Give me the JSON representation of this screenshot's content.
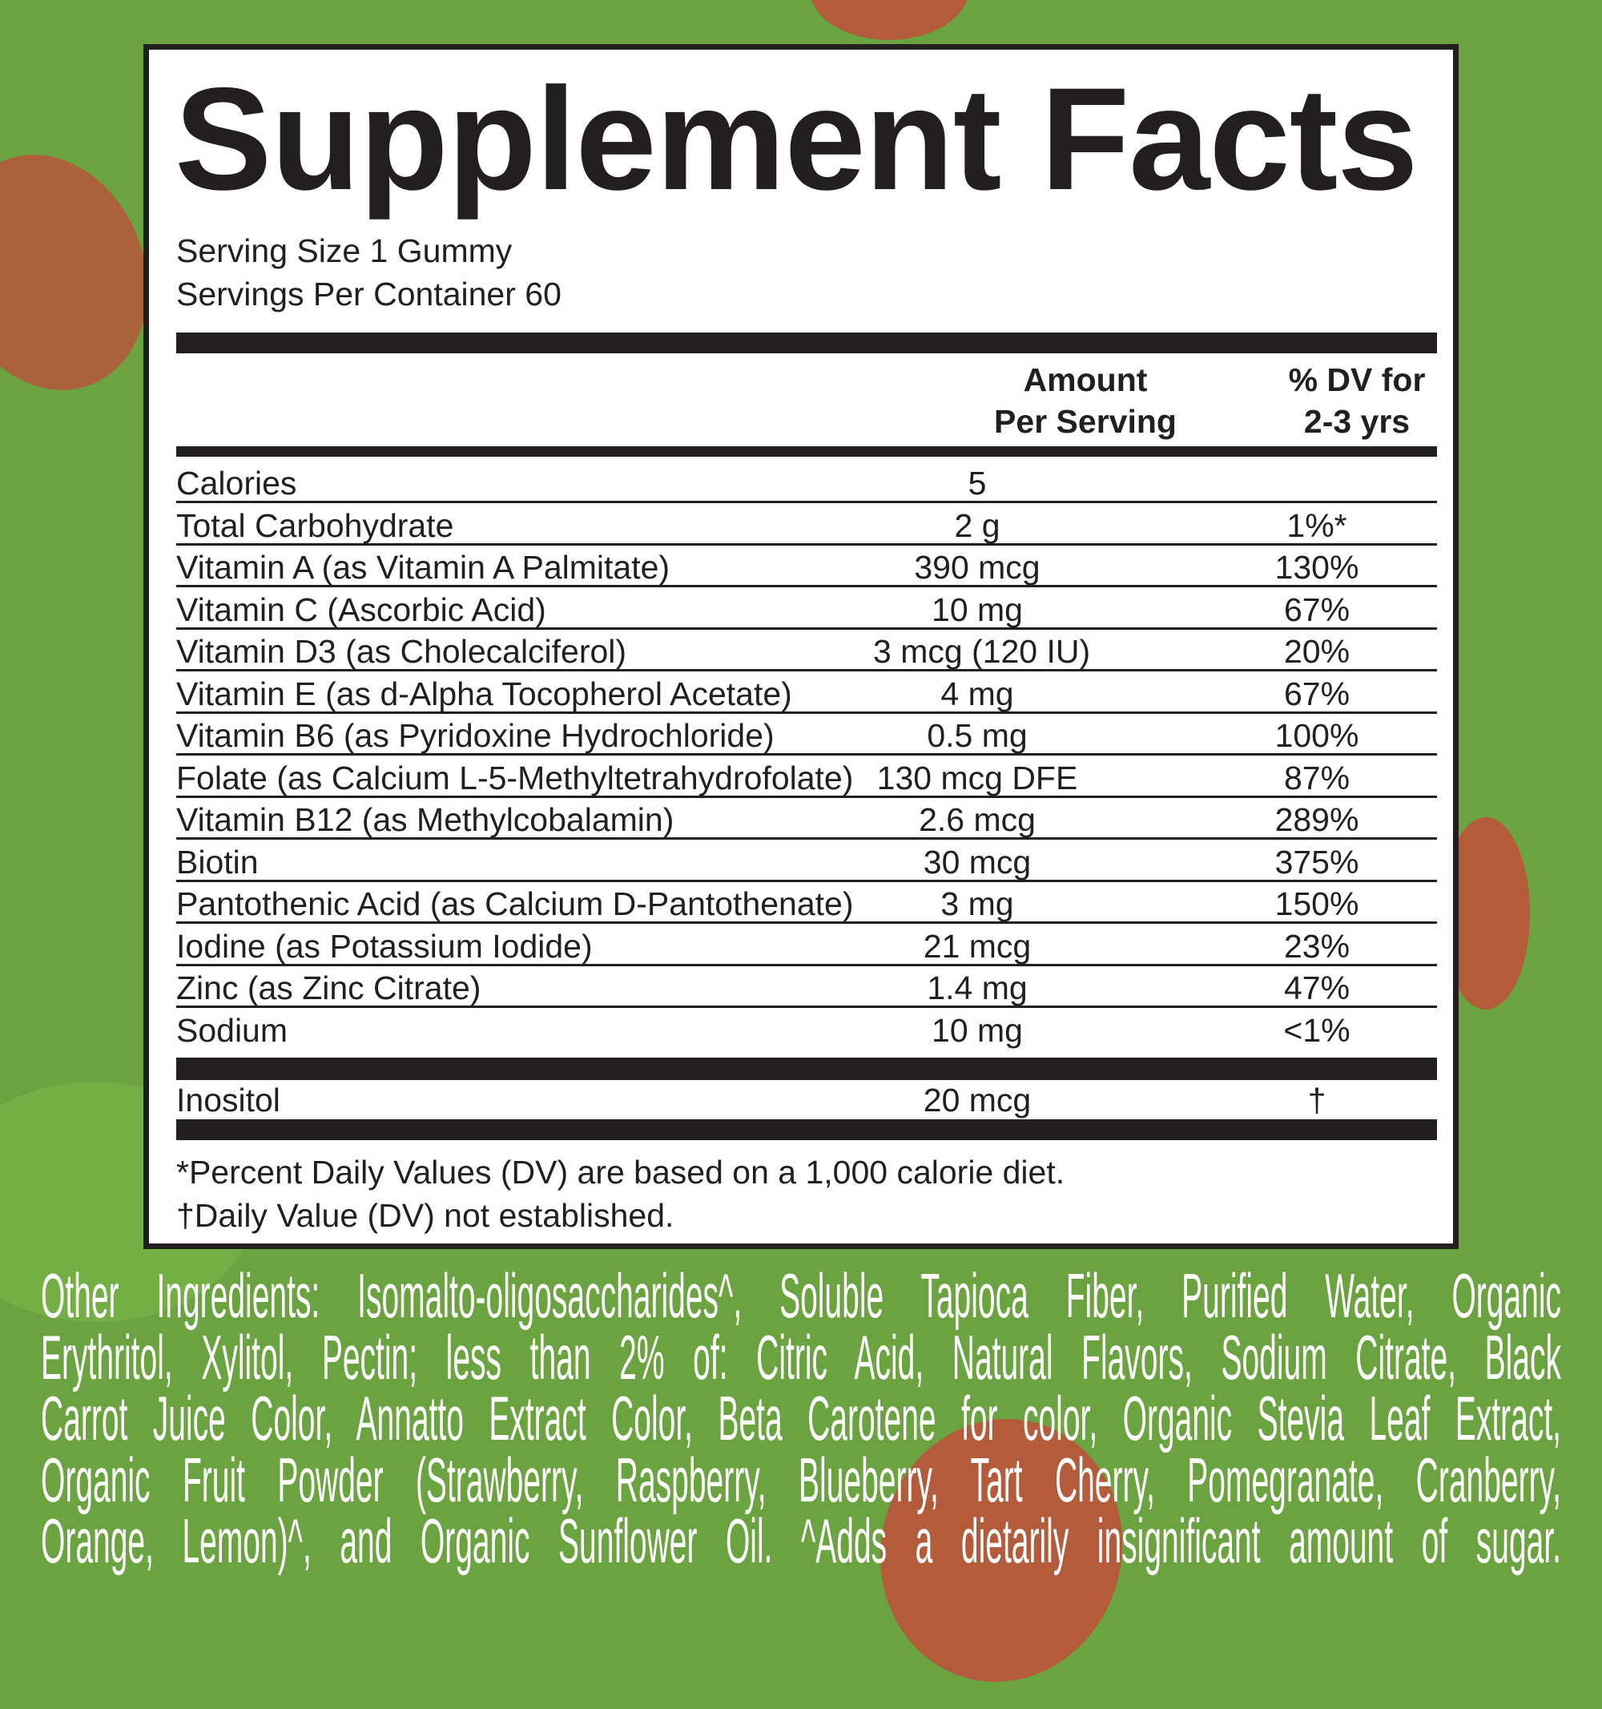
{
  "colors": {
    "background": "#6aa33f",
    "panel": "#ffffff",
    "ink": "#231f20",
    "ingredients_text": "#ffffff",
    "strawberry": "#b35b3b"
  },
  "title": "Supplement Facts",
  "serving_size": "Serving Size 1 Gummy",
  "servings_per_container": "Servings Per Container 60",
  "header": {
    "amount_line1": "Amount",
    "amount_line2": "Per Serving",
    "dv_line1": "% DV for",
    "dv_line2": "2-3 yrs"
  },
  "rows": [
    {
      "name": "Calories",
      "amount": "5",
      "dv": ""
    },
    {
      "name": "Total Carbohydrate",
      "amount": "2 g",
      "dv": "1%*"
    },
    {
      "name": "Vitamin A (as Vitamin A Palmitate)",
      "amount": "390 mcg",
      "dv": "130%"
    },
    {
      "name": "Vitamin C (Ascorbic Acid)",
      "amount": "10 mg",
      "dv": "67%"
    },
    {
      "name": "Vitamin D3 (as Cholecalciferol)",
      "amount": "3 mcg (120 IU)",
      "dv": "20%"
    },
    {
      "name": "Vitamin E (as d-Alpha Tocopherol Acetate)",
      "amount": "4 mg",
      "dv": "67%"
    },
    {
      "name": "Vitamin B6 (as Pyridoxine Hydrochloride)",
      "amount": "0.5 mg",
      "dv": "100%"
    },
    {
      "name": "Folate (as Calcium L-5-Methyltetrahydrofolate)",
      "amount": "130 mcg DFE",
      "dv": "87%"
    },
    {
      "name": "Vitamin B12 (as Methylcobalamin)",
      "amount": "2.6 mcg",
      "dv": "289%"
    },
    {
      "name": "Biotin",
      "amount": "30 mcg",
      "dv": "375%"
    },
    {
      "name": "Pantothenic Acid (as Calcium D-Pantothenate)",
      "amount": "3 mg",
      "dv": "150%"
    },
    {
      "name": "Iodine (as Potassium Iodide)",
      "amount": "21 mcg",
      "dv": "23%"
    },
    {
      "name": "Zinc (as Zinc Citrate)",
      "amount": "1.4 mg",
      "dv": "47%"
    },
    {
      "name": "Sodium",
      "amount": "10 mg",
      "dv": "<1%"
    }
  ],
  "other_row": {
    "name": "Inositol",
    "amount": "20 mcg",
    "dv": "†"
  },
  "footnotes": [
    "*Percent Daily Values (DV) are based on a 1,000 calorie diet.",
    "†Daily Value (DV) not established."
  ],
  "other_ingredients_lines": [
    "Other Ingredients: Isomalto-oligosaccharides^, Soluble Tapioca Fiber, Purified Water, Organic",
    "Erythritol, Xylitol, Pectin; less than 2% of: Citric Acid, Natural Flavors, Sodium Citrate, Black",
    "Carrot Juice Color, Annatto Extract Color, Beta Carotene for color, Organic Stevia Leaf Extract,",
    "Organic Fruit Powder (Strawberry, Raspberry, Blueberry, Tart Cherry, Pomegranate, Cranberry,",
    "Orange, Lemon)^, and Organic Sunflower Oil. ^Adds a dietarily insignificant amount of sugar."
  ]
}
